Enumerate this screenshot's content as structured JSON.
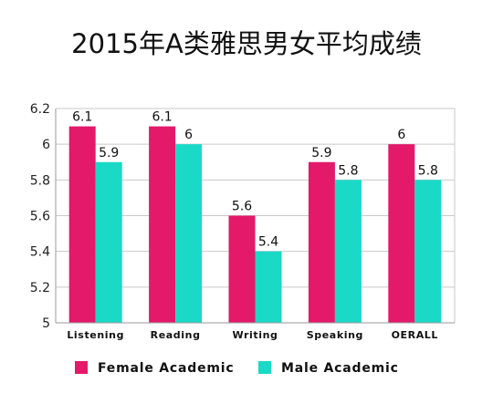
{
  "chart_data": {
    "type": "bar",
    "title": "2015年A类雅思男女平均成绩",
    "categories": [
      "Listening",
      "Reading",
      "Writing",
      "Speaking",
      "OERALL"
    ],
    "series": [
      {
        "name": "Female Academic",
        "color": "#e4196a",
        "values": [
          6.1,
          6.1,
          5.6,
          5.9,
          6.0
        ],
        "labels": [
          "6.1",
          "6.1",
          "5.6",
          "5.9",
          "6"
        ]
      },
      {
        "name": "Male Academic",
        "color": "#1ad9c7",
        "values": [
          5.9,
          6.0,
          5.4,
          5.8,
          5.8
        ],
        "labels": [
          "5.9",
          "6",
          "5.4",
          "5.8",
          "5.8"
        ]
      }
    ],
    "y_ticks": [
      "5",
      "5.2",
      "5.4",
      "5.6",
      "5.8",
      "6",
      "6.2"
    ],
    "ylim": [
      5,
      6.2
    ],
    "grid": true,
    "legend_position": "bottom"
  }
}
